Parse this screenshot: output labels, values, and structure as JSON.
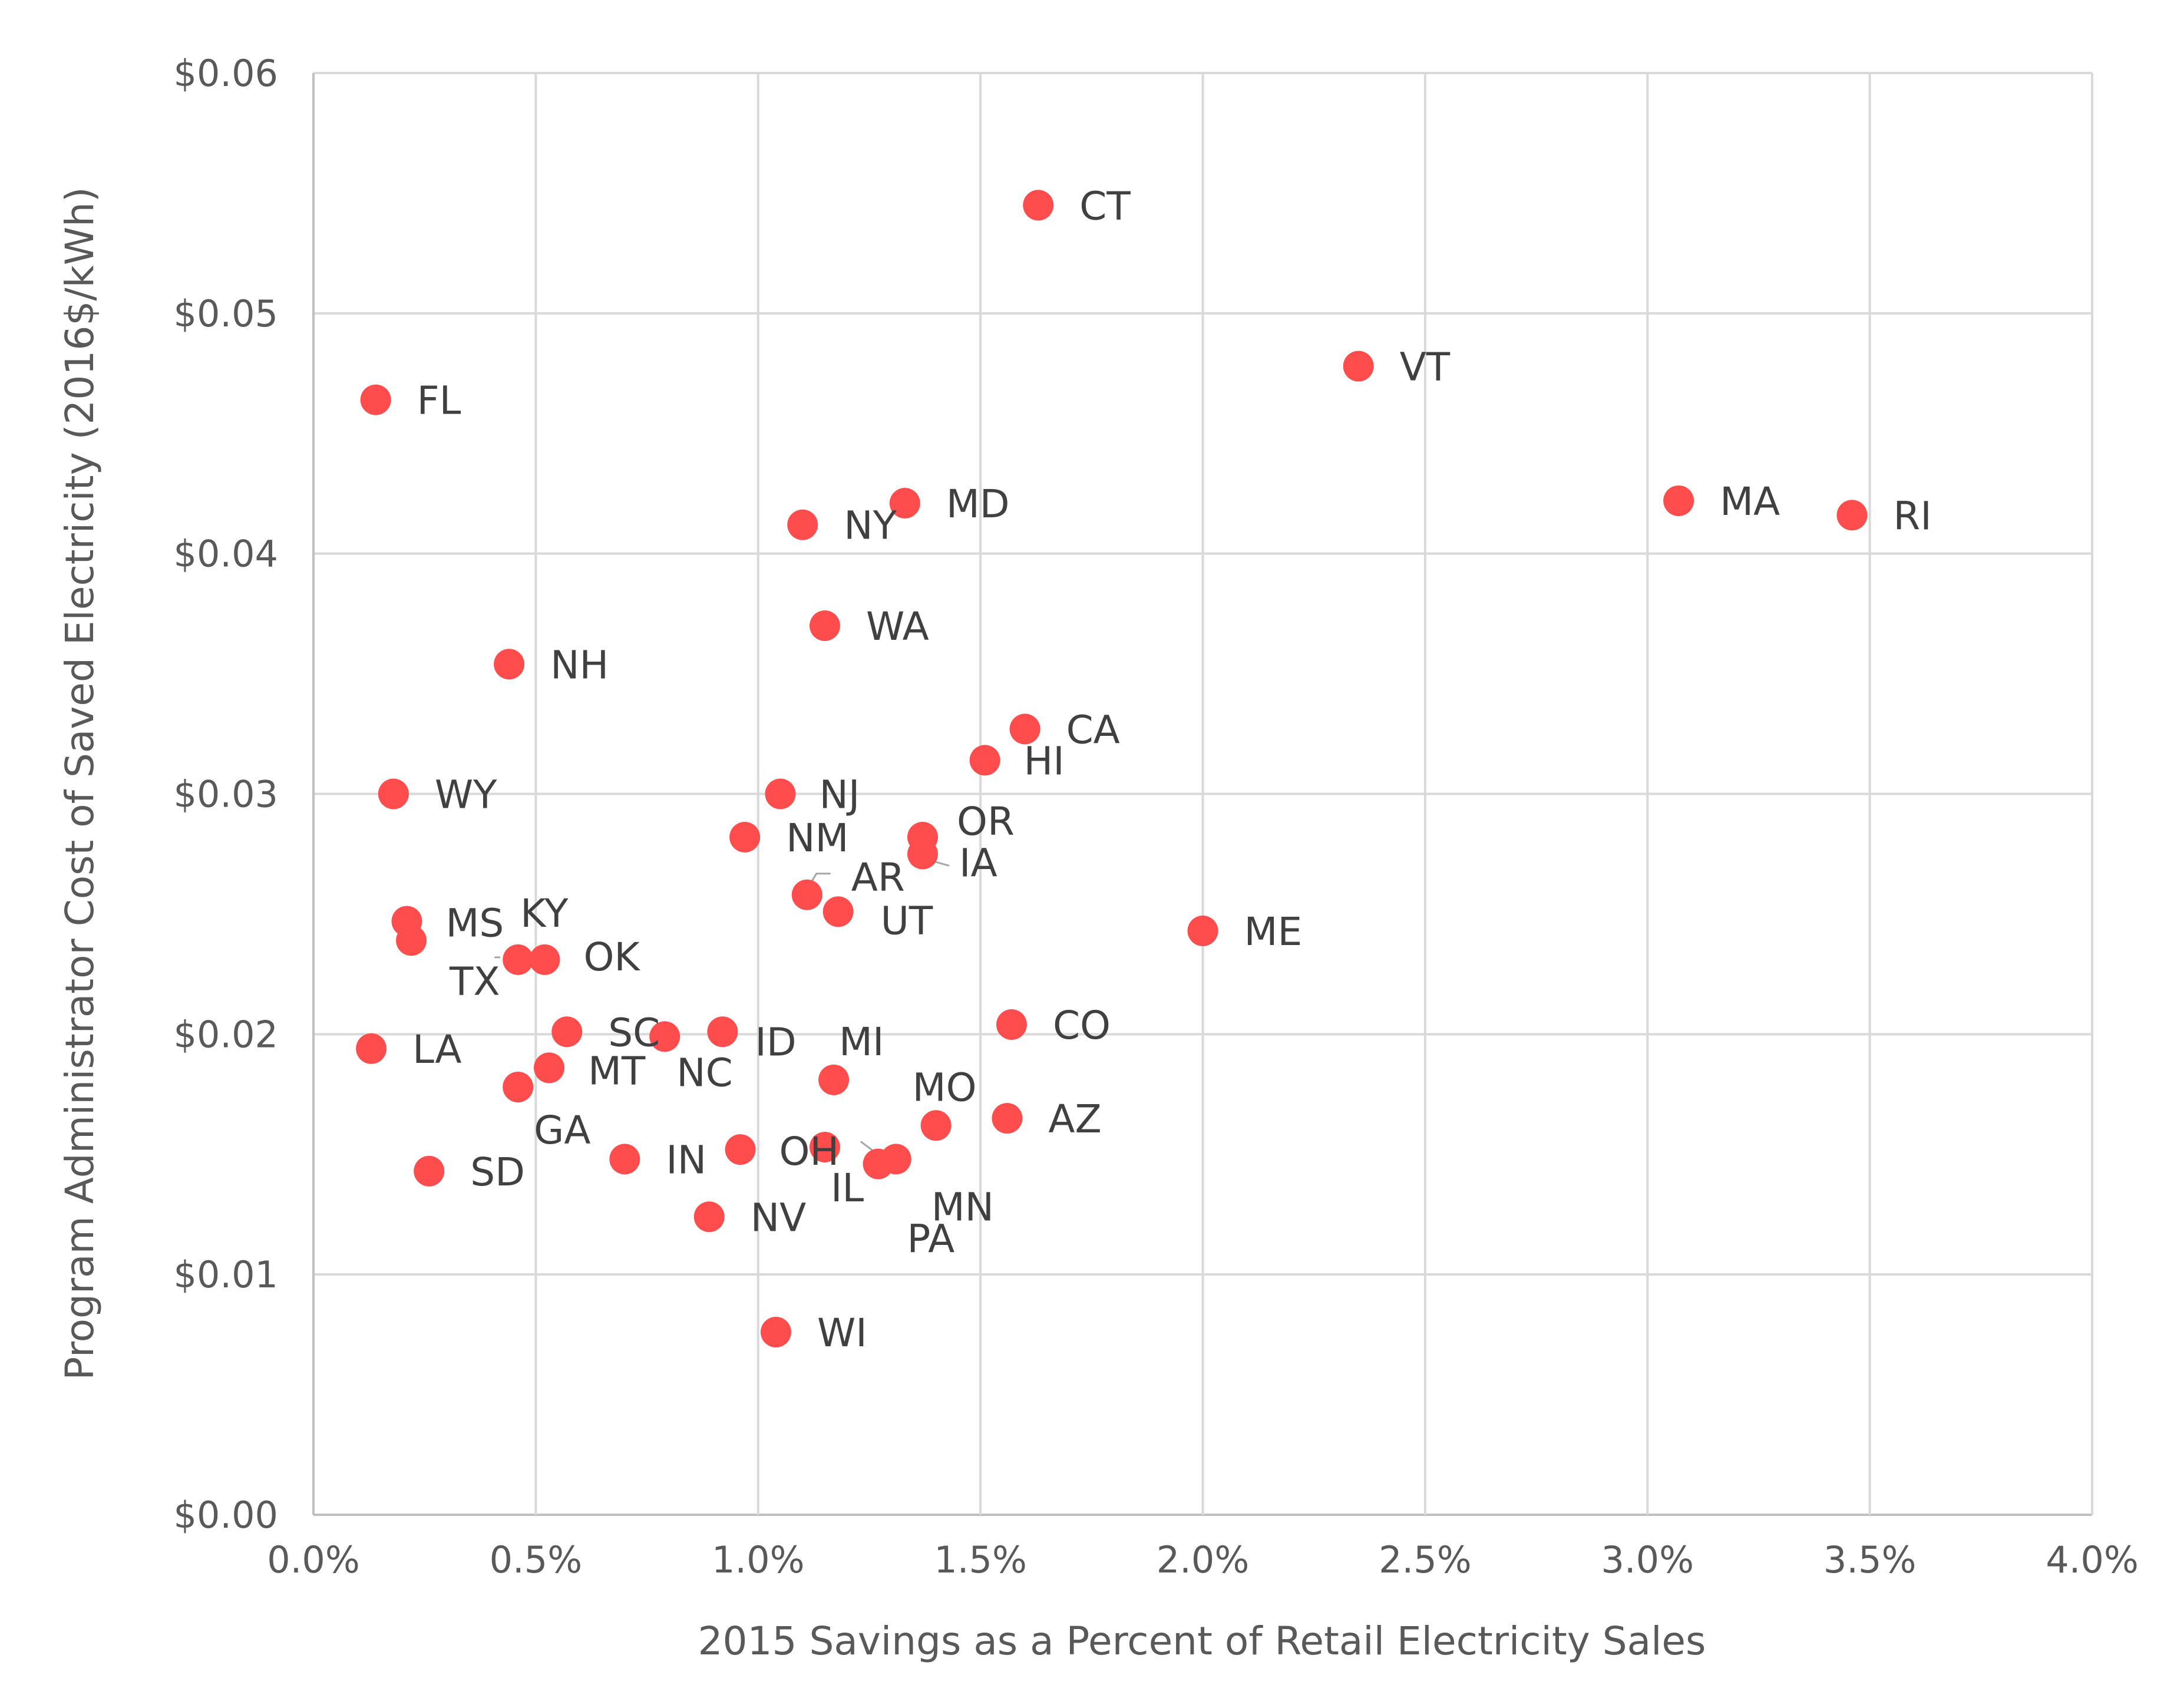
{
  "chart_data": {
    "type": "scatter",
    "title": "",
    "xlabel": "2015 Savings as a Percent of Retail Electricity Sales",
    "ylabel": "Program Administrator Cost of Saved Electricity (2016$/kWh)",
    "xlim": [
      0,
      4.0
    ],
    "ylim": [
      0,
      0.06
    ],
    "x_ticks": [
      0,
      0.5,
      1.0,
      1.5,
      2.0,
      2.5,
      3.0,
      3.5,
      4.0
    ],
    "x_tick_labels": [
      "0.0%",
      "0.5%",
      "1.0%",
      "1.5%",
      "2.0%",
      "2.5%",
      "3.0%",
      "3.5%",
      "4.0%"
    ],
    "y_ticks": [
      0,
      0.01,
      0.02,
      0.03,
      0.04,
      0.05,
      0.06
    ],
    "y_tick_labels": [
      "$0.00",
      "$0.01",
      "$0.02",
      "$0.03",
      "$0.04",
      "$0.05",
      "$0.06"
    ],
    "grid": true,
    "marker_color": "#ff4d4d",
    "points": [
      {
        "label": "CT",
        "x": 1.63,
        "y": 0.0545
      },
      {
        "label": "VT",
        "x": 2.35,
        "y": 0.0478
      },
      {
        "label": "FL",
        "x": 0.14,
        "y": 0.0464
      },
      {
        "label": "MD",
        "x": 1.33,
        "y": 0.0421
      },
      {
        "label": "NY",
        "x": 1.1,
        "y": 0.0412
      },
      {
        "label": "MA",
        "x": 3.07,
        "y": 0.0422
      },
      {
        "label": "RI",
        "x": 3.46,
        "y": 0.0416
      },
      {
        "label": "WA",
        "x": 1.15,
        "y": 0.037
      },
      {
        "label": "NH",
        "x": 0.44,
        "y": 0.0354
      },
      {
        "label": "CA",
        "x": 1.6,
        "y": 0.0327
      },
      {
        "label": "HI",
        "x": 1.51,
        "y": 0.0314
      },
      {
        "label": "WY",
        "x": 0.18,
        "y": 0.03
      },
      {
        "label": "NJ",
        "x": 1.05,
        "y": 0.03
      },
      {
        "label": "NM",
        "x": 0.97,
        "y": 0.0282
      },
      {
        "label": "OR",
        "x": 1.37,
        "y": 0.0282
      },
      {
        "label": "IA",
        "x": 1.37,
        "y": 0.0275
      },
      {
        "label": "AR",
        "x": 1.11,
        "y": 0.0258
      },
      {
        "label": "UT",
        "x": 1.18,
        "y": 0.0251
      },
      {
        "label": "ME",
        "x": 2.0,
        "y": 0.0243
      },
      {
        "label": "MS",
        "x": 0.21,
        "y": 0.0247
      },
      {
        "label": "TX",
        "x": 0.22,
        "y": 0.0239
      },
      {
        "label": "KY",
        "x": 0.46,
        "y": 0.0231
      },
      {
        "label": "OK",
        "x": 0.52,
        "y": 0.0231
      },
      {
        "label": "LA",
        "x": 0.13,
        "y": 0.0194
      },
      {
        "label": "SC",
        "x": 0.57,
        "y": 0.0201
      },
      {
        "label": "NC",
        "x": 0.79,
        "y": 0.0199
      },
      {
        "label": "ID",
        "x": 0.92,
        "y": 0.0201
      },
      {
        "label": "CO",
        "x": 1.57,
        "y": 0.0204
      },
      {
        "label": "MT",
        "x": 0.53,
        "y": 0.0186
      },
      {
        "label": "GA",
        "x": 0.46,
        "y": 0.0178
      },
      {
        "label": "MI",
        "x": 1.17,
        "y": 0.0181
      },
      {
        "label": "MO",
        "x": 1.4,
        "y": 0.0162
      },
      {
        "label": "AZ",
        "x": 1.56,
        "y": 0.0165
      },
      {
        "label": "OH",
        "x": 0.96,
        "y": 0.0152
      },
      {
        "label": "IL",
        "x": 1.15,
        "y": 0.0153
      },
      {
        "label": "MN",
        "x": 1.31,
        "y": 0.0148
      },
      {
        "label": "PA",
        "x": 1.27,
        "y": 0.0146
      },
      {
        "label": "IN",
        "x": 0.7,
        "y": 0.0148
      },
      {
        "label": "SD",
        "x": 0.26,
        "y": 0.0143
      },
      {
        "label": "NV",
        "x": 0.89,
        "y": 0.0124
      },
      {
        "label": "WI",
        "x": 1.04,
        "y": 0.0076
      }
    ]
  }
}
